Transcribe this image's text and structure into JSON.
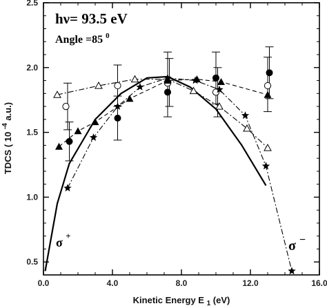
{
  "chart_data": {
    "type": "scatter",
    "title": "hν= 93.5 eV",
    "subtitle_prefix": "Angle =85",
    "subtitle_superscript": "0",
    "xlabel_main": "Kinetic Energy E",
    "xlabel_sub": "1",
    "xlabel_unit": "(eV)",
    "ylabel_main": "TDCS ( 10",
    "ylabel_exp": "-4",
    "ylabel_unit": " a.u.)",
    "xlim": [
      0,
      16
    ],
    "ylim": [
      0.4,
      2.5
    ],
    "x_ticks": [
      {
        "value": 0,
        "label": "0.0"
      },
      {
        "value": 4,
        "label": "4.0"
      },
      {
        "value": 8,
        "label": "8.0"
      },
      {
        "value": 12,
        "label": "12.0"
      },
      {
        "value": 16,
        "label": "16.0"
      }
    ],
    "y_ticks": [
      {
        "value": 0.5,
        "label": "0.5"
      },
      {
        "value": 1.0,
        "label": "1.0"
      },
      {
        "value": 1.5,
        "label": "1.5"
      },
      {
        "value": 2.0,
        "label": "2.0"
      },
      {
        "value": 2.5,
        "label": "2.5"
      }
    ],
    "series": [
      {
        "marker": "line",
        "style": "solid",
        "x": [
          0.1,
          0.8,
          1.5,
          3.0,
          4.5,
          6.0,
          7.2,
          8.5,
          10.0,
          11.5,
          12.9
        ],
        "y": [
          0.43,
          0.95,
          1.26,
          1.6,
          1.8,
          1.92,
          1.93,
          1.85,
          1.68,
          1.4,
          1.09
        ]
      },
      {
        "marker": "open-triangle",
        "style": "dash-dot",
        "x": [
          0.8,
          3.2,
          5.3,
          7.2,
          8.7,
          10.2,
          11.8,
          13.0
        ],
        "y": [
          1.79,
          1.86,
          1.91,
          1.91,
          1.82,
          1.7,
          1.53,
          1.38
        ]
      },
      {
        "marker": "open-circle",
        "style": "none",
        "x": [
          1.3,
          4.3,
          7.2,
          10.0,
          13.0
        ],
        "y": [
          1.7,
          1.86,
          1.88,
          1.81,
          1.86
        ]
      },
      {
        "marker": "filled-circle",
        "style": "none",
        "x": [
          1.5,
          4.3,
          7.2,
          10.0,
          13.1
        ],
        "y": [
          1.43,
          1.61,
          1.81,
          1.92,
          1.96
        ]
      },
      {
        "marker": "filled-triangle",
        "style": "dash",
        "x": [
          0.9,
          2.0,
          3.0,
          5.0,
          7.2,
          8.9,
          10.3,
          13.0
        ],
        "y": [
          1.39,
          1.51,
          1.58,
          1.76,
          1.9,
          1.91,
          1.89,
          1.79
        ]
      },
      {
        "marker": "star",
        "style": "dash-dot",
        "x": [
          1.4,
          2.9,
          4.3,
          5.6,
          7.2,
          8.8,
          10.2,
          11.7,
          12.9,
          14.4
        ],
        "y": [
          1.07,
          1.46,
          1.7,
          1.85,
          1.92,
          1.9,
          1.83,
          1.63,
          1.24,
          0.43
        ]
      }
    ],
    "error_bars": [
      {
        "x": 1.4,
        "low": 1.52,
        "high": 1.88
      },
      {
        "x": 1.5,
        "low": 1.28,
        "high": 1.58
      },
      {
        "x": 4.3,
        "low": 1.44,
        "high": 1.78
      },
      {
        "x": 4.3,
        "low": 1.7,
        "high": 2.02
      },
      {
        "x": 7.2,
        "low": 1.62,
        "high": 2.12
      },
      {
        "x": 7.3,
        "low": 1.7,
        "high": 2.07
      },
      {
        "x": 10.0,
        "low": 1.72,
        "high": 2.12
      },
      {
        "x": 10.1,
        "low": 1.62,
        "high": 2.0
      },
      {
        "x": 13.0,
        "low": 1.66,
        "high": 2.08
      },
      {
        "x": 13.1,
        "low": 1.76,
        "high": 2.16
      }
    ],
    "annotations": {
      "sigma_plus_base": "σ",
      "sigma_plus_sup": "+",
      "sigma_minus_base": "σ",
      "sigma_minus_sup": "−"
    }
  }
}
